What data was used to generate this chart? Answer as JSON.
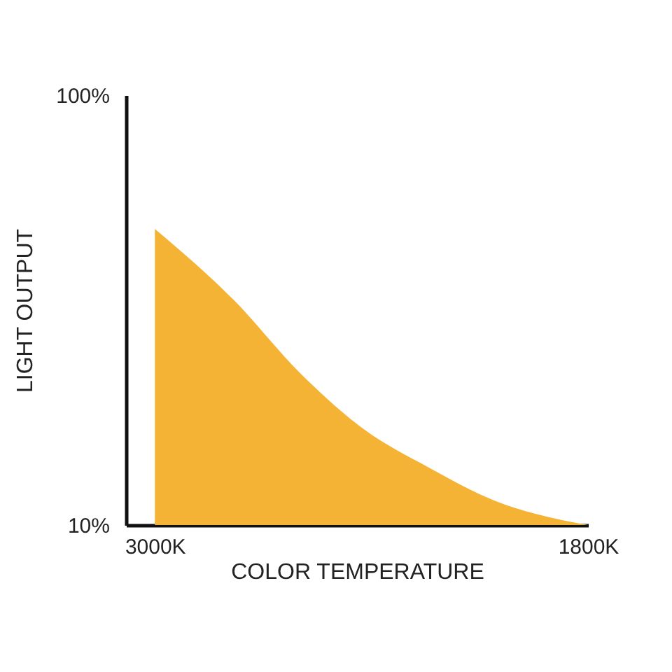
{
  "chart_data": {
    "type": "area",
    "xlabel": "COLOR TEMPERATURE",
    "ylabel": "LIGHT OUTPUT",
    "xlim": [
      3080,
      1800
    ],
    "xticks": [
      {
        "value": 3000,
        "label": "3000K"
      },
      {
        "value": 1800,
        "label": "1800K"
      }
    ],
    "ylim": [
      10,
      100
    ],
    "yticks": [
      {
        "value": 10,
        "label": "10%"
      },
      {
        "value": 100,
        "label": "100%"
      }
    ],
    "grid": false,
    "x": [
      3000,
      2780,
      2600,
      2420,
      2240,
      2055,
      1870,
      1800
    ],
    "series": [
      {
        "color": "#f5b335",
        "values": [
          72,
          57,
          42,
          30,
          22,
          15,
          11,
          10
        ]
      }
    ]
  }
}
